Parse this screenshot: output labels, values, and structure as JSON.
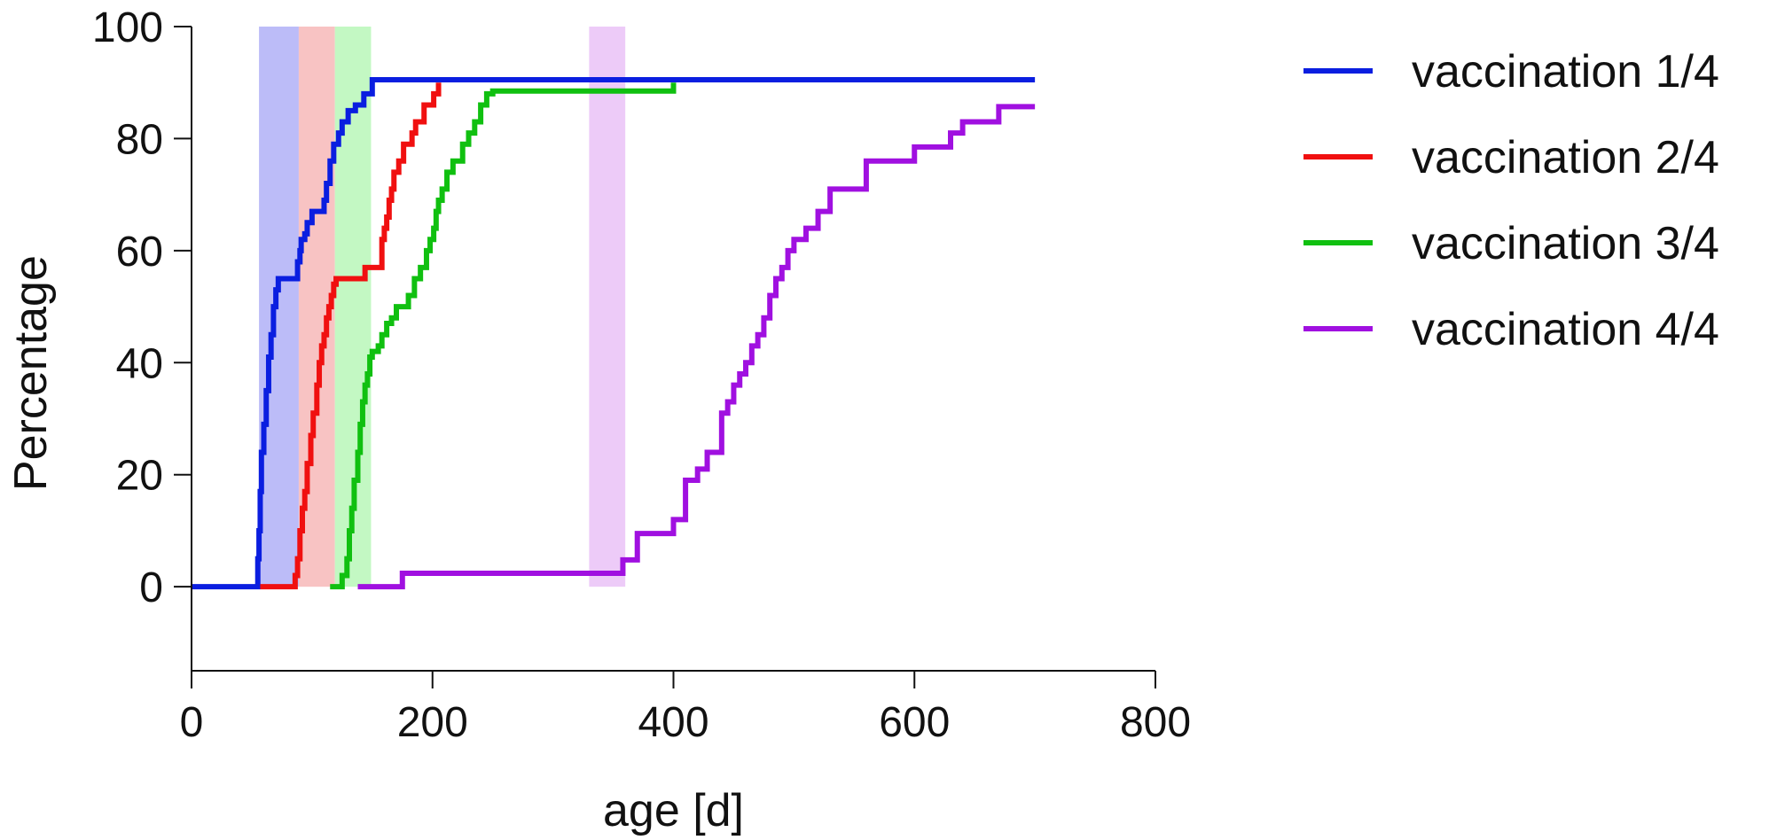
{
  "chart_data": {
    "type": "line",
    "xlabel": "age [d]",
    "ylabel": "Percentage",
    "xlim": [
      0,
      800
    ],
    "ylim": [
      -15,
      100
    ],
    "xticks": [
      0,
      200,
      400,
      600,
      800
    ],
    "yticks": [
      0,
      20,
      40,
      60,
      80,
      100
    ],
    "legend_position": "right",
    "grid": false,
    "shaded_bands": [
      {
        "x_start": 56,
        "x_end": 89,
        "color": "#b8b8f8"
      },
      {
        "x_start": 89,
        "x_end": 119,
        "color": "#f8c0c0"
      },
      {
        "x_start": 119,
        "x_end": 149,
        "color": "#c0f8c0"
      },
      {
        "x_start": 330,
        "x_end": 360,
        "color": "#ecc8f8"
      }
    ],
    "series": [
      {
        "name": "vaccination 1/4",
        "color": "#0a1ee0",
        "x": [
          0,
          54,
          55,
          56,
          57,
          58,
          60,
          62,
          64,
          66,
          68,
          70,
          72,
          87,
          88,
          90,
          91,
          94,
          96,
          100,
          110,
          112,
          115,
          118,
          122,
          125,
          130,
          136,
          143,
          150,
          700
        ],
        "y": [
          0,
          0,
          5,
          10,
          17,
          24,
          29,
          35,
          41,
          45,
          50,
          53,
          55,
          55,
          58,
          60,
          62,
          63,
          65,
          67,
          69,
          72,
          76,
          79,
          81,
          83,
          85,
          86,
          88,
          90.5,
          90.5
        ]
      },
      {
        "name": "vaccination 2/4",
        "color": "#f01010",
        "x": [
          57,
          85,
          86,
          88,
          90,
          92,
          94,
          96,
          99,
          101,
          104,
          106,
          108,
          110,
          112,
          114,
          116,
          118,
          120,
          122,
          126,
          140,
          144,
          158,
          160,
          162,
          164,
          166,
          168,
          172,
          176,
          183,
          186,
          193,
          201,
          205
        ],
        "y": [
          0,
          0,
          2,
          5,
          10,
          14,
          17,
          22,
          27,
          31,
          36,
          40,
          43,
          45,
          48,
          50,
          52,
          54,
          55,
          55,
          55,
          55,
          57,
          62,
          64,
          66,
          69,
          71,
          74,
          76,
          79,
          81,
          83,
          86,
          88,
          90
        ]
      },
      {
        "name": "vaccination 3/4",
        "color": "#10c010",
        "x": [
          115,
          121,
          125,
          129,
          131,
          133,
          135,
          138,
          140,
          142,
          144,
          146,
          148,
          150,
          155,
          158,
          162,
          166,
          170,
          180,
          185,
          190,
          195,
          198,
          201,
          203,
          205,
          208,
          212,
          217,
          225,
          230,
          235,
          240,
          245,
          250,
          398,
          400
        ],
        "y": [
          0,
          0,
          2,
          5,
          10,
          14,
          19,
          24,
          29,
          33,
          36,
          38,
          41,
          42,
          43,
          45,
          47,
          48,
          50,
          52,
          55,
          57,
          60,
          62,
          64,
          67,
          69,
          71,
          74,
          76,
          79,
          81,
          83,
          86,
          88,
          88.5,
          88.5,
          90
        ]
      },
      {
        "name": "vaccination 4/4",
        "color": "#a010e0",
        "x": [
          138,
          172,
          175,
          357,
          358,
          370,
          400,
          410,
          420,
          428,
          440,
          445,
          450,
          455,
          460,
          465,
          470,
          475,
          480,
          485,
          490,
          495,
          500,
          510,
          520,
          530,
          540,
          560,
          580,
          600,
          610,
          630,
          640,
          660,
          670,
          680,
          700
        ],
        "y": [
          0,
          0,
          2.4,
          2.4,
          4.8,
          9.5,
          12,
          19,
          21,
          24,
          31,
          33,
          36,
          38,
          40,
          43,
          45,
          48,
          52,
          55,
          57,
          60,
          62,
          64,
          67,
          71,
          71,
          76,
          76,
          78.5,
          78.5,
          81,
          83,
          83,
          85.7,
          85.7,
          85.7
        ]
      }
    ]
  }
}
